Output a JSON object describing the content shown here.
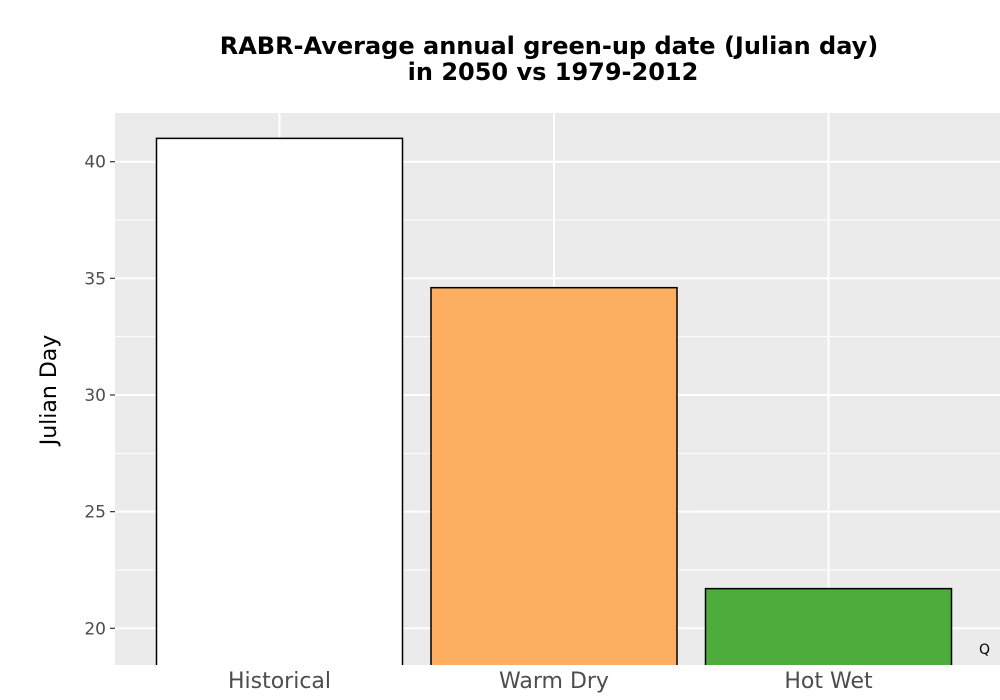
{
  "chart_data": {
    "type": "bar",
    "title_line1": "RABR-Average annual green-up date (Julian day)",
    "title_line2": "in 2050 vs 1979-2012",
    "xlabel": "",
    "ylabel": "Julian Day",
    "categories": [
      "Historical",
      "Warm Dry",
      "Hot Wet"
    ],
    "values": [
      41.0,
      34.6,
      21.7
    ],
    "colors": [
      "#ffffff",
      "#fdae61",
      "#4dac3c"
    ],
    "bar_outline": "#000000",
    "panel_background": "#ebebeb",
    "grid_color": "#ffffff",
    "grid": true,
    "ylim": [
      18.5,
      42
    ],
    "yticks": [
      20,
      25,
      30,
      35,
      40
    ],
    "ytick_labels": [
      "20",
      "25",
      "30",
      "35",
      "40"
    ],
    "corner_mark": "Q"
  }
}
